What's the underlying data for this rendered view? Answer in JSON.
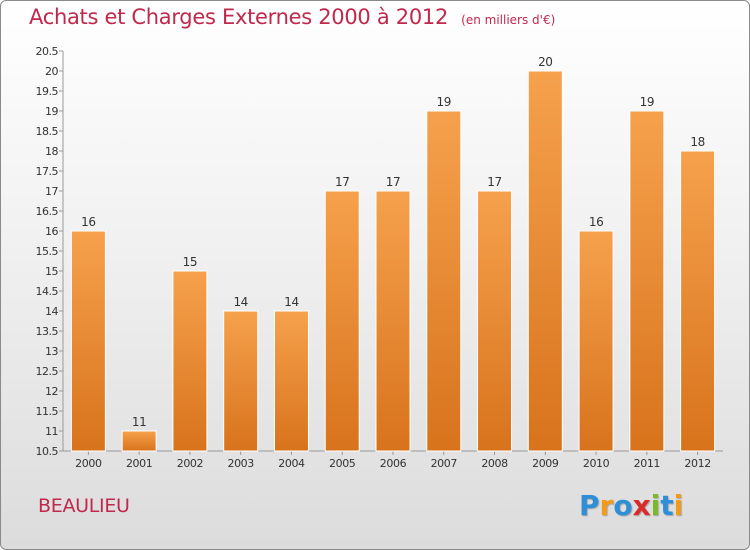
{
  "header": {
    "title": "Achats et Charges Externes 2000 à 2012",
    "unit": "(en milliers d'€)"
  },
  "town": "BEAULIEU",
  "logo": {
    "text": "Proxiti",
    "letters": [
      {
        "ch": "P",
        "color": "#2f8fd6"
      },
      {
        "ch": "r",
        "color": "#f29a1a"
      },
      {
        "ch": "o",
        "color": "#2f8fd6"
      },
      {
        "ch": "x",
        "color": "#d92b2b"
      },
      {
        "ch": "i",
        "color": "#7ab82e"
      },
      {
        "ch": "t",
        "color": "#2f8fd6"
      },
      {
        "ch": "i",
        "color": "#f29a1a"
      }
    ]
  },
  "colors": {
    "bar_top": "#f6a14d",
    "bar_bottom": "#d8731c",
    "title": "#c0284c"
  },
  "chart_data": {
    "type": "bar",
    "title": "Achats et Charges Externes 2000 à 2012",
    "subtitle": "(en milliers d'€)",
    "xlabel": "",
    "ylabel": "",
    "categories": [
      "2000",
      "2001",
      "2002",
      "2003",
      "2004",
      "2005",
      "2006",
      "2007",
      "2008",
      "2009",
      "2010",
      "2011",
      "2012"
    ],
    "values": [
      16,
      11,
      15,
      14,
      14,
      17,
      17,
      19,
      17,
      20,
      16,
      19,
      18
    ],
    "data_labels": [
      "16",
      "11",
      "15",
      "14",
      "14",
      "17",
      "17",
      "19",
      "17",
      "20",
      "16",
      "19",
      "18"
    ],
    "ylim": [
      10.5,
      20.5
    ],
    "yticks": [
      "10.5",
      "11",
      "11.5",
      "12",
      "12.5",
      "13",
      "13.5",
      "14",
      "14.5",
      "15",
      "15.5",
      "16",
      "16.5",
      "17",
      "17.5",
      "18",
      "18.5",
      "19",
      "19.5",
      "20",
      "20.5"
    ],
    "grid": false,
    "legend": "none"
  }
}
